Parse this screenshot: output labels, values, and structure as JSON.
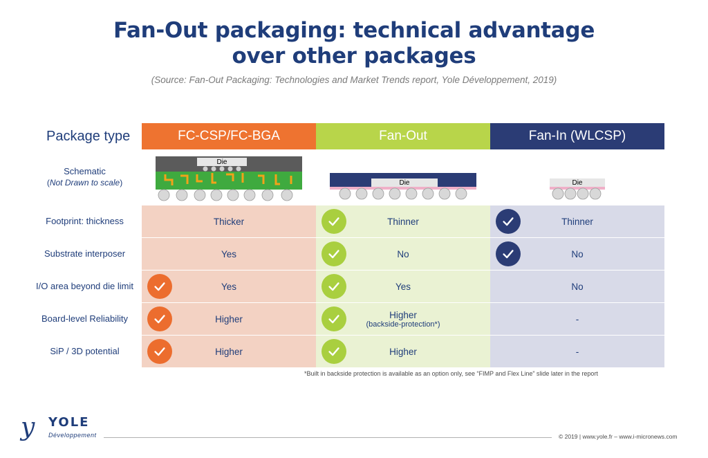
{
  "title": "Fan-Out packaging: technical advantage over other packages",
  "title_line1": "Fan-Out packaging: technical advantage",
  "title_line2": "over other packages",
  "source": "(Source: Fan-Out Packaging: Technologies and Market Trends report, Yole Développement, 2019)",
  "table": {
    "header": {
      "label": "Package type",
      "cols": [
        "FC-CSP/FC-BGA",
        "Fan-Out",
        "Fan-In (WLCSP)"
      ]
    },
    "schematic": {
      "label": "Schematic",
      "label_note_prefix": "(",
      "label_note": "Not Drawn to scale",
      "label_note_suffix": ")",
      "die_label": "Die"
    },
    "rows": [
      {
        "label": "Footprint: thickness",
        "cells": [
          {
            "text": "Thicker",
            "check": false
          },
          {
            "text": "Thinner",
            "check": true
          },
          {
            "text": "Thinner",
            "check": true
          }
        ]
      },
      {
        "label": "Substrate interposer",
        "cells": [
          {
            "text": "Yes",
            "check": false
          },
          {
            "text": "No",
            "check": true
          },
          {
            "text": "No",
            "check": true
          }
        ]
      },
      {
        "label": "I/O area beyond die limit",
        "cells": [
          {
            "text": "Yes",
            "check": true
          },
          {
            "text": "Yes",
            "check": true
          },
          {
            "text": "No",
            "check": false
          }
        ]
      },
      {
        "label": "Board-level Reliability",
        "cells": [
          {
            "text": "Higher",
            "check": true
          },
          {
            "text": "Higher",
            "sub": "(backside-protection*)",
            "check": true
          },
          {
            "text": "-",
            "check": false
          }
        ]
      },
      {
        "label": "SiP / 3D potential",
        "cells": [
          {
            "text": "Higher",
            "check": true
          },
          {
            "text": "Higher",
            "check": true
          },
          {
            "text": "-",
            "check": false
          }
        ]
      }
    ]
  },
  "footnote": "*Built in backside protection is available as an option only, see “FIMP and Flex Line” slide later in the report",
  "logo": {
    "name": "YOLE",
    "sub": "Développement"
  },
  "copyright": "© 2019 | www.yole.fr – www.i-micronews.com",
  "colors": {
    "navy": "#1f3d7a",
    "orange": "#ee7330",
    "green": "#b8d54a",
    "indigo": "#2b3c75"
  }
}
